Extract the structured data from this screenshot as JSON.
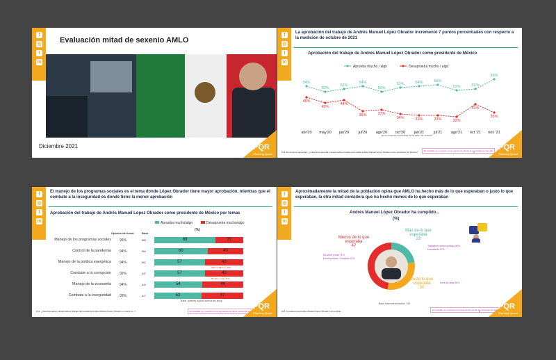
{
  "social": {
    "handle": "@PlanningQuant",
    "icons": [
      "facebook-icon",
      "instagram-icon",
      "twitter-icon",
      "linkedin-icon"
    ]
  },
  "logo": {
    "mark": "PQR",
    "name": "Planning Quant"
  },
  "slide1": {
    "title": "Evaluación mitad de sexenio AMLO",
    "date": "Diciembre 2021"
  },
  "slide2": {
    "headline": "La aprobación del trabajo de Andrés Manuel López Obrador incrementó 7 puntos porcentuales con respecto a la medición de octubre de 2021",
    "subtitle": "Aprobación del trabajo de Andrés Manuel López Obrador como presidente de México",
    "note": "No se presenta el porcentaje de No sabe / No contestó",
    "question": "P12. En términos generales, ¿usted tanto aprueba o desaprueba el trabajo que realiza Andrés Manuel López Obrador como presidente de México?",
    "disclaimer": "El resultado se muestra en los segmentos donde el porcentaje es más alto",
    "page": "2"
  },
  "slide3": {
    "headline": "El manejo de los programas sociales es el tema donde López Obrador tiene mayor aprobación, mientras que el combate a la inseguridad es donde tiene la menor aprobación",
    "subtitle": "Aprobación del trabajo de Andrés Manuel López Obrador como presidente de México por temas",
    "unit": "(%)",
    "col_opinion": "Opinión del tema",
    "col_base": "Base",
    "legend_approve": "Aprueba mucho/algo",
    "legend_disapprove": "Desaprueba mucho/algo",
    "base_note": "Base: quienes opinan acerca del tema",
    "question": "P13. ¿Usted aprueba o desaprueba el trabajo del presidente Andrés Manuel López Obrador en cuanto a...?",
    "disclaimer": "El resultado se muestra en los segmentos donde el porcentaje es más alto",
    "note1": "400 Y 4 Mil Ce - 43%",
    "note2": "55 años y más 71%",
    "rows": [
      {
        "label": "Manejo de los programas sociales",
        "opinion": "96%",
        "base": "683",
        "approve": 69,
        "disapprove": 31
      },
      {
        "label": "Control de la pandemia",
        "opinion": "94%",
        "base": "664",
        "approve": 60,
        "disapprove": 40
      },
      {
        "label": "Manejo de la política energética",
        "opinion": "94%",
        "base": "592",
        "approve": 57,
        "disapprove": 43
      },
      {
        "label": "Combate a la corrupción",
        "opinion": "92%",
        "base": "637",
        "approve": 57,
        "disapprove": 43
      },
      {
        "label": "Manejo de la economía",
        "opinion": "94%",
        "base": "616",
        "approve": 54,
        "disapprove": 46
      },
      {
        "label": "Combate a la inseguridad",
        "opinion": "93%",
        "base": "617",
        "approve": 53,
        "disapprove": 47
      }
    ]
  },
  "slide4": {
    "headline": "Aproximadamente la mitad de la población opina que AMLO ha hecho más de lo que esperaban o justo lo que esperaban, la otra mitad considera que ha hecho menos de lo que esperaban",
    "subtitle": "Andrés Manuel López Obrador ha cumplido...",
    "unit": "(%)",
    "slices": [
      {
        "label": "Más de lo que esperaba",
        "value": 22,
        "color": "#4fb9a6"
      },
      {
        "label": "Justo lo que esperaba",
        "value": 30,
        "color": "#f2a81f"
      },
      {
        "label": "Menos de lo que esperaba",
        "value": 47,
        "color": "#e42c2c"
      }
    ],
    "slice_text": {
      "mas": "Más de lo que esperaba\n22",
      "justo": "Justo lo que esperaba\n30",
      "menos": "Menos de lo que esperaba\n47"
    },
    "mini1": "Trabaja en sector público 50%",
    "mini1b": "Estudiante 47%",
    "mini2": "Ama de casa 36%",
    "mini3": "55 años y más 71%",
    "mini3b": "Desempleado / Jubilado 67%",
    "base_note": "Base total entrevistados: 742",
    "question": "P15. Considera que Andrés Manuel López Obrador ha cumplido...",
    "disclaimer": "El resultado se muestra en los segmentos donde el porcentaje es más alto",
    "page": "3"
  },
  "chart_data": {
    "type": "line",
    "title": "Aprobación del trabajo de Andrés Manuel López Obrador como presidente de México",
    "categories": [
      "abr'20",
      "may'20",
      "jun'20",
      "jul'20",
      "ago'20",
      "oct'20",
      "jun'21",
      "jul'21",
      "ago'21",
      "oct '21",
      "nov '21"
    ],
    "series": [
      {
        "name": "Aprueba mucho / algo",
        "color": "#4fb9a6",
        "values": [
          54,
          50,
          52,
          54,
          50,
          53,
          54,
          55,
          51,
          52,
          59
        ]
      },
      {
        "name": "Desaprueba mucho / algo",
        "color": "#e42c2c",
        "values": [
          46,
          42,
          44,
          36,
          37,
          34,
          33,
          33,
          32,
          41,
          35
        ]
      }
    ],
    "ylim": [
      25,
      65
    ],
    "legend": "top"
  }
}
